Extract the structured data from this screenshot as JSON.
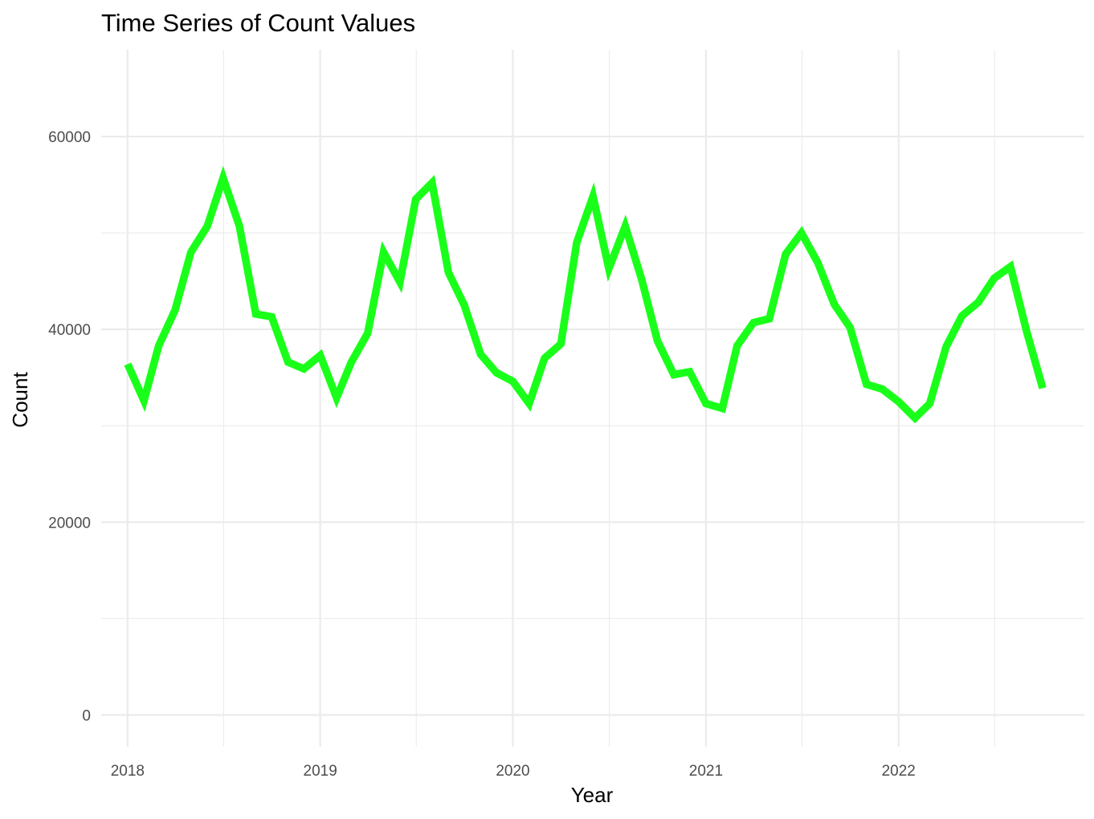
{
  "chart_data": {
    "type": "line",
    "title": "Time Series of Count Values",
    "xlabel": "Year",
    "ylabel": "Count",
    "x_ticks": [
      "2018",
      "2019",
      "2020",
      "2021",
      "2022"
    ],
    "y_ticks": [
      "0",
      "20000",
      "40000",
      "60000"
    ],
    "xlim": [
      "2017-11-12",
      "2022-12-19"
    ],
    "ylim": [
      -3300,
      69000
    ],
    "grid": true,
    "line_color": "#1aff1a",
    "series": [
      {
        "x": [
          "2018-01-01",
          "2018-02-01",
          "2018-03-01",
          "2018-04-01",
          "2018-05-01",
          "2018-06-01",
          "2018-07-01",
          "2018-08-01",
          "2018-09-01",
          "2018-10-01",
          "2018-11-01",
          "2018-12-01",
          "2019-01-01",
          "2019-02-01",
          "2019-03-01",
          "2019-04-01",
          "2019-05-01",
          "2019-06-01",
          "2019-07-01",
          "2019-08-01",
          "2019-09-01",
          "2019-10-01",
          "2019-11-01",
          "2019-12-01",
          "2020-01-01",
          "2020-02-01",
          "2020-03-01",
          "2020-04-01",
          "2020-05-01",
          "2020-06-01",
          "2020-07-01",
          "2020-08-01",
          "2020-09-01",
          "2020-10-01",
          "2020-11-01",
          "2020-12-01",
          "2021-01-01",
          "2021-02-01",
          "2021-03-01",
          "2021-04-01",
          "2021-05-01",
          "2021-06-01",
          "2021-07-01",
          "2021-08-01",
          "2021-09-01",
          "2021-10-01",
          "2021-11-01",
          "2021-12-01",
          "2022-01-01",
          "2022-02-01",
          "2022-03-01",
          "2022-04-01",
          "2022-05-01",
          "2022-06-01",
          "2022-07-01",
          "2022-08-01",
          "2022-09-01",
          "2022-10-01"
        ],
        "y": [
          36400,
          32600,
          38300,
          42000,
          48000,
          50700,
          55700,
          50700,
          41600,
          41300,
          36600,
          35900,
          37300,
          32900,
          36600,
          39600,
          48000,
          44900,
          53500,
          55200,
          45900,
          42500,
          37400,
          35500,
          34600,
          32300,
          37000,
          38500,
          49000,
          53800,
          46300,
          50700,
          45200,
          38800,
          35300,
          35600,
          32300,
          31800,
          38300,
          40700,
          41100,
          47800,
          50000,
          46900,
          42600,
          40200,
          34300,
          33800,
          32500,
          30800,
          32300,
          38200,
          41400,
          42800,
          45300,
          46500,
          39700,
          33900
        ]
      }
    ]
  }
}
